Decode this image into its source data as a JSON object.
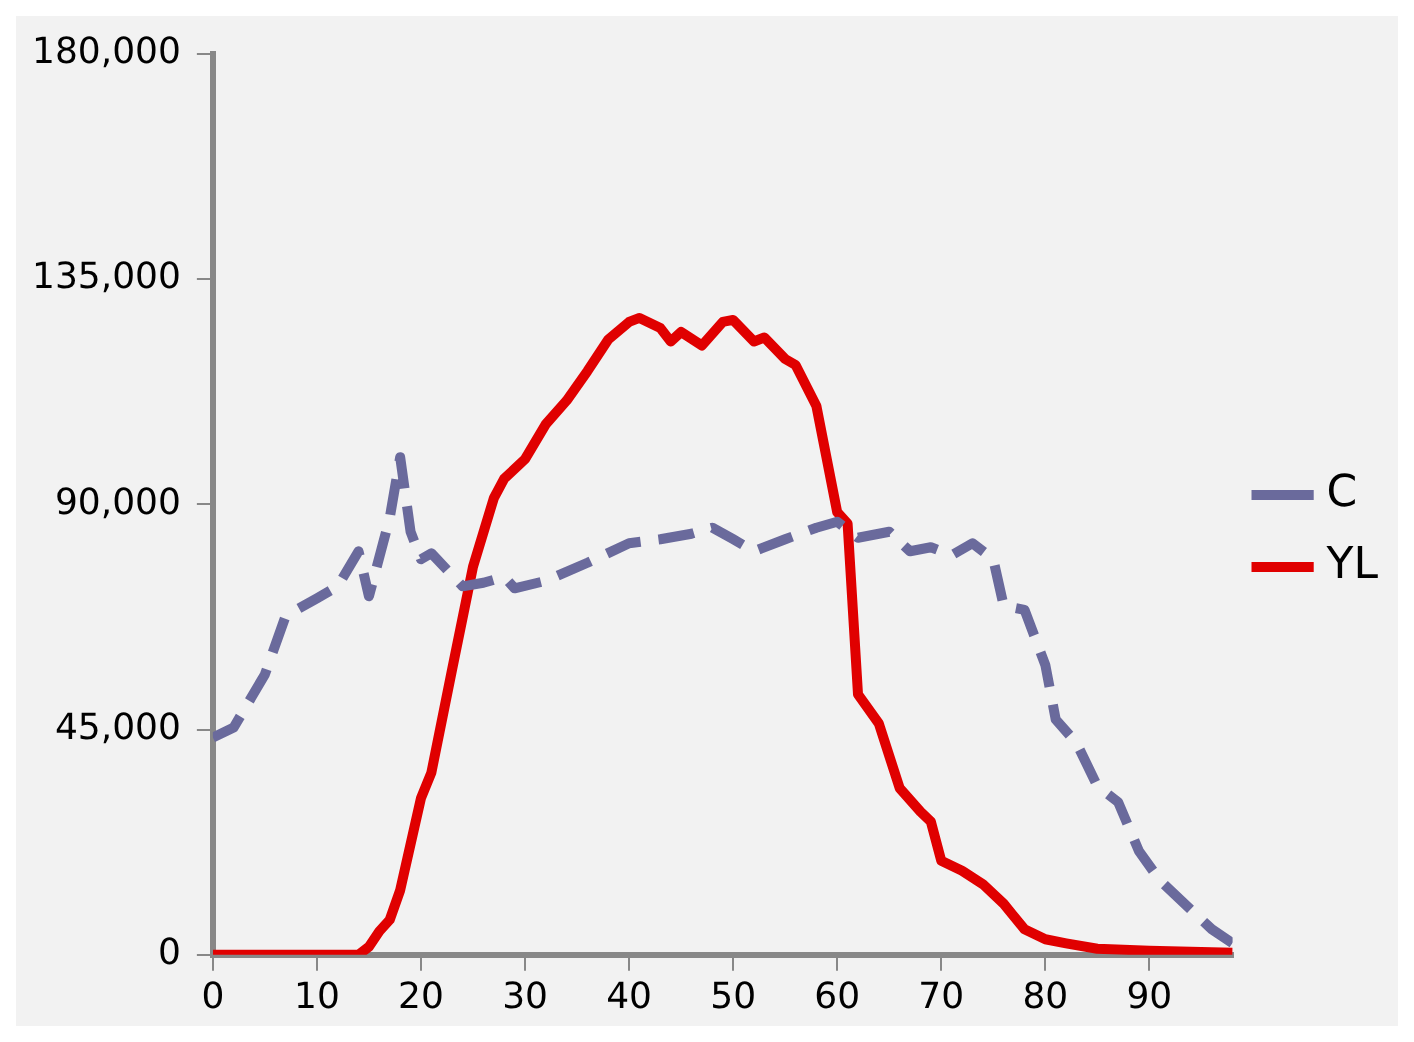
{
  "chart_data": {
    "type": "line",
    "xlim": [
      0,
      98
    ],
    "xticks": [
      0,
      10,
      20,
      30,
      40,
      50,
      60,
      70,
      80,
      90
    ],
    "ylim": [
      0,
      180000
    ],
    "yticks": [
      {
        "value": 0,
        "label": "0"
      },
      {
        "value": 45000,
        "label": "45,000"
      },
      {
        "value": 90000,
        "label": "90,000"
      },
      {
        "value": 135000,
        "label": "135,000"
      },
      {
        "value": 180000,
        "label": "180,000"
      }
    ],
    "grid": false,
    "legend": "right",
    "marker": "none",
    "series": [
      {
        "name": "C",
        "color": "#6a6a9c",
        "line_style": "dashed",
        "x": [
          0,
          2,
          5,
          7,
          10,
          12,
          14,
          15,
          17,
          18,
          19,
          20,
          21,
          24,
          26,
          28,
          29,
          32,
          36,
          40,
          43,
          46,
          48,
          50,
          52,
          55,
          58,
          60,
          62,
          65,
          67,
          69,
          71,
          73,
          75,
          76,
          78,
          80,
          81,
          83,
          85,
          87,
          89,
          91,
          94,
          96,
          98
        ],
        "values": [
          43400,
          45400,
          56000,
          67700,
          71200,
          73600,
          80600,
          71600,
          87300,
          99400,
          84500,
          79000,
          80200,
          73600,
          74300,
          75500,
          73200,
          74700,
          78300,
          82200,
          83000,
          84100,
          85300,
          83000,
          80600,
          83000,
          85300,
          86500,
          83300,
          84500,
          80600,
          81400,
          79800,
          82200,
          79000,
          69700,
          68900,
          57900,
          47000,
          42300,
          33700,
          30500,
          20700,
          14900,
          9000,
          5100,
          2300
        ]
      },
      {
        "name": "YL",
        "color": "#e00000",
        "line_style": "solid",
        "x": [
          0,
          5,
          10,
          14,
          15,
          16,
          17,
          18,
          20,
          21,
          23,
          25,
          27,
          28,
          30,
          32,
          34,
          36,
          38,
          40,
          41,
          43,
          44,
          45,
          47,
          49,
          50,
          52,
          53,
          55,
          56,
          58,
          59,
          60,
          61,
          62,
          64,
          66,
          68,
          69,
          70,
          72,
          74,
          76,
          78,
          80,
          82,
          85,
          90,
          98
        ],
        "values": [
          0,
          0,
          0,
          0,
          1600,
          4700,
          7000,
          12900,
          31300,
          36400,
          57100,
          77500,
          91200,
          95100,
          99000,
          106000,
          110700,
          116600,
          122900,
          126400,
          127200,
          125200,
          122500,
          124400,
          121700,
          126400,
          126800,
          122500,
          123300,
          119000,
          117800,
          109600,
          99000,
          88400,
          86100,
          52000,
          46200,
          33300,
          28600,
          26600,
          18800,
          16800,
          14100,
          10200,
          5100,
          3100,
          2300,
          1200,
          800,
          400
        ]
      }
    ]
  }
}
